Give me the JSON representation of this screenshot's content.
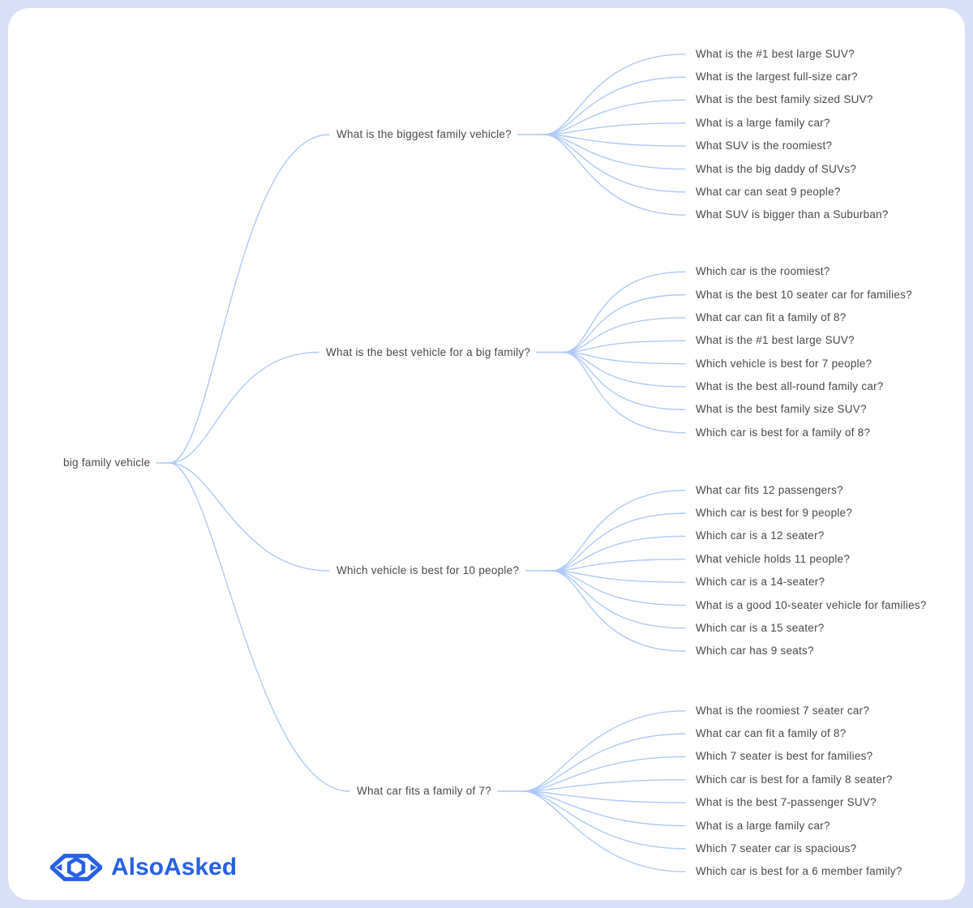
{
  "theme": {
    "page_bg": "#d8dff7",
    "card_bg": "#ffffff",
    "line_color": "#aec9f7",
    "text_color": "#47484d",
    "brand_blue": "#2760e4"
  },
  "logo": {
    "text": "AlsoAsked",
    "icon": "alsoasked-eye-hexagon-icon"
  },
  "tree": {
    "root": {
      "label": "big family vehicle"
    },
    "branches": [
      {
        "label": "What is the biggest family vehicle?",
        "children": [
          "What is the #1 best large SUV?",
          "What is the largest full-size car?",
          "What is the best family sized SUV?",
          "What is a large family car?",
          "What SUV is the roomiest?",
          "What is the big daddy of SUVs?",
          "What car can seat 9 people?",
          "What SUV is bigger than a Suburban?"
        ]
      },
      {
        "label": "What is the best vehicle for a big family?",
        "children": [
          "Which car is the roomiest?",
          "What is the best 10 seater car for families?",
          "What car can fit a family of 8?",
          "What is the #1 best large SUV?",
          "Which vehicle is best for 7 people?",
          "What is the best all-round family car?",
          "What is the best family size SUV?",
          "Which car is best for a family of 8?"
        ]
      },
      {
        "label": "Which vehicle is best for 10 people?",
        "children": [
          "What car fits 12 passengers?",
          "Which car is best for 9 people?",
          "Which car is a 12 seater?",
          "What vehicle holds 11 people?",
          "Which car is a 14-seater?",
          "What is a good 10-seater vehicle for families?",
          "Which car is a 15 seater?",
          "Which car has 9 seats?"
        ]
      },
      {
        "label": "What car fits a family of 7?",
        "children": [
          "What is the roomiest 7 seater car?",
          "What car can fit a family of 8?",
          "Which 7 seater is best for families?",
          "Which car is best for a family 8 seater?",
          "What is the best 7-passenger SUV?",
          "What is a large family car?",
          "Which 7 seater car is spacious?",
          "Which car is best for a 6 member family?"
        ]
      }
    ]
  }
}
